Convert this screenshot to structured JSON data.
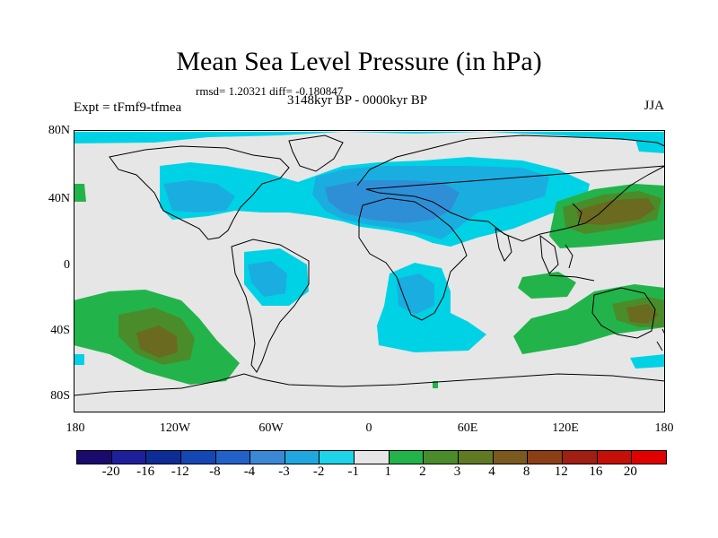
{
  "title": "Mean Sea Level Pressure (in hPa)",
  "stats": "rmsd= 1.20321 diff= -0.180847",
  "period": "3148kyr BP - 0000kyr BP",
  "experiment": "Expt = tFmf9-tfmea",
  "season": "JJA",
  "y_axis_labels": [
    "80N",
    "40N",
    "0",
    "40S",
    "80S"
  ],
  "x_axis_labels": [
    "180",
    "120W",
    "60W",
    "0",
    "60E",
    "120E",
    "180"
  ],
  "legend": {
    "colors": [
      "#1a0a6e",
      "#1f1f9c",
      "#0d2c96",
      "#1446b4",
      "#2262c8",
      "#3a88d6",
      "#1fa8e0",
      "#1ed4e8",
      "#e6e6e6",
      "#22b44a",
      "#4a8c2a",
      "#607a24",
      "#7a5a1e",
      "#8c3e16",
      "#a01e12",
      "#c41006",
      "#e00000"
    ],
    "labels": [
      "-20",
      "-16",
      "-12",
      "-8",
      "-4",
      "-3",
      "-2",
      "-1",
      "1",
      "2",
      "3",
      "4",
      "8",
      "12",
      "16",
      "20"
    ]
  },
  "map_colors": {
    "background": "#e6e6e6",
    "neg1": "#00d2e6",
    "neg2": "#1aaee0",
    "neg3": "#2f8fd6",
    "pos1": "#22b44a",
    "pos2": "#4a8c2a",
    "pos3": "#6a6a20"
  }
}
